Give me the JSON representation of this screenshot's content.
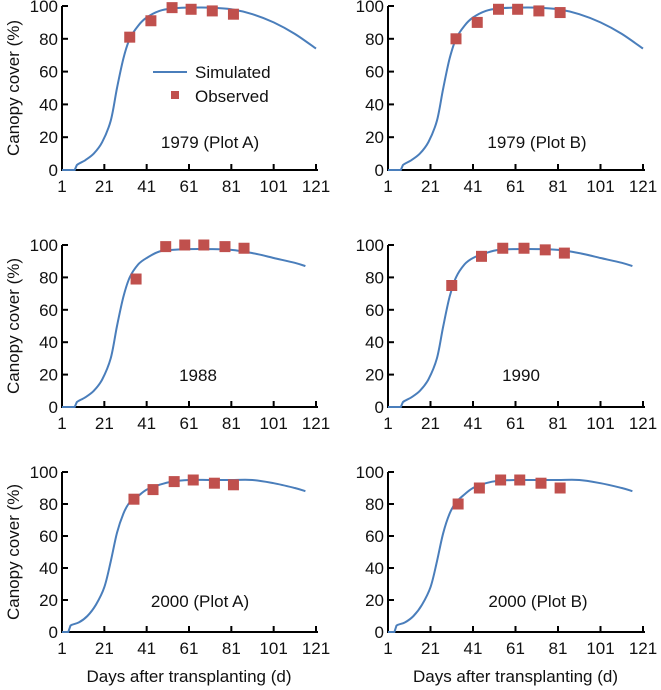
{
  "chart_data": [
    {
      "type": "line",
      "title": "1979 (Plot A)",
      "xlabel": "",
      "ylabel": "Canopy cover (%)",
      "xlim": [
        1,
        121
      ],
      "ylim": [
        0,
        100
      ],
      "xticks": [
        "1",
        "21",
        "41",
        "61",
        "81",
        "101",
        "121"
      ],
      "yticks": [
        "0",
        "20",
        "40",
        "60",
        "80",
        "100"
      ],
      "legend": {
        "position": "center-right",
        "entries": [
          "Simulated",
          "Observed"
        ]
      },
      "series": [
        {
          "name": "Simulated",
          "type": "line",
          "x": [
            1,
            7,
            8,
            12,
            16,
            20,
            24,
            27,
            30,
            33,
            37,
            41,
            47,
            53,
            61,
            71,
            81,
            91,
            101,
            111,
            121
          ],
          "y": [
            0,
            0,
            3,
            6,
            10,
            17,
            30,
            50,
            68,
            80,
            88,
            93,
            97,
            98.5,
            99,
            99,
            98,
            95,
            90,
            83,
            74
          ]
        },
        {
          "name": "Observed",
          "type": "scatter",
          "x": [
            33,
            43,
            53,
            62,
            72,
            82
          ],
          "y": [
            81,
            91,
            99,
            98,
            97,
            95
          ]
        }
      ]
    },
    {
      "type": "line",
      "title": "1979 (Plot B)",
      "xlabel": "",
      "ylabel": "",
      "xlim": [
        1,
        121
      ],
      "ylim": [
        0,
        100
      ],
      "xticks": [
        "1",
        "21",
        "41",
        "61",
        "81",
        "101",
        "121"
      ],
      "yticks": [
        "0",
        "20",
        "40",
        "60",
        "80",
        "100"
      ],
      "series": [
        {
          "name": "Simulated",
          "type": "line",
          "x": [
            1,
            7,
            8,
            12,
            16,
            20,
            24,
            27,
            30,
            33,
            37,
            41,
            47,
            53,
            61,
            71,
            81,
            91,
            101,
            111,
            121
          ],
          "y": [
            0,
            0,
            3,
            6,
            10,
            17,
            30,
            50,
            68,
            80,
            88,
            93,
            97,
            98.5,
            99,
            99,
            98,
            95,
            90,
            83,
            74
          ]
        },
        {
          "name": "Observed",
          "type": "scatter",
          "x": [
            33,
            43,
            53,
            62,
            72,
            82
          ],
          "y": [
            80,
            90,
            98,
            98,
            97,
            96
          ]
        }
      ]
    },
    {
      "type": "line",
      "title": "1988",
      "xlabel": "",
      "ylabel": "Canopy cover (%)",
      "xlim": [
        1,
        121
      ],
      "ylim": [
        0,
        100
      ],
      "xticks": [
        "1",
        "21",
        "41",
        "61",
        "81",
        "101",
        "121"
      ],
      "yticks": [
        "0",
        "20",
        "40",
        "60",
        "80",
        "100"
      ],
      "series": [
        {
          "name": "Simulated",
          "type": "line",
          "x": [
            1,
            7,
            8,
            12,
            16,
            20,
            24,
            27,
            30,
            33,
            37,
            41,
            47,
            53,
            61,
            71,
            81,
            91,
            101,
            111,
            116
          ],
          "y": [
            0,
            0,
            3,
            6,
            10,
            17,
            30,
            50,
            68,
            80,
            88,
            92,
            96,
            97,
            97.5,
            97.5,
            97,
            95,
            92,
            89,
            87
          ]
        },
        {
          "name": "Observed",
          "type": "scatter",
          "x": [
            36,
            50,
            59,
            68,
            78,
            87
          ],
          "y": [
            79,
            99,
            100,
            100,
            99,
            98
          ]
        }
      ]
    },
    {
      "type": "line",
      "title": "1990",
      "xlabel": "",
      "ylabel": "",
      "xlim": [
        1,
        121
      ],
      "ylim": [
        0,
        100
      ],
      "xticks": [
        "1",
        "21",
        "41",
        "61",
        "81",
        "101",
        "121"
      ],
      "yticks": [
        "0",
        "20",
        "40",
        "60",
        "80",
        "100"
      ],
      "series": [
        {
          "name": "Simulated",
          "type": "line",
          "x": [
            1,
            7,
            8,
            12,
            16,
            20,
            24,
            27,
            30,
            33,
            37,
            41,
            47,
            53,
            61,
            71,
            81,
            91,
            101,
            111,
            116
          ],
          "y": [
            0,
            0,
            3,
            6,
            10,
            17,
            30,
            50,
            68,
            80,
            88,
            92,
            95,
            97,
            97.5,
            97.5,
            97,
            95,
            92,
            89,
            87
          ]
        },
        {
          "name": "Observed",
          "type": "scatter",
          "x": [
            31,
            45,
            55,
            65,
            75,
            84
          ],
          "y": [
            75,
            93,
            98,
            98,
            97,
            95
          ]
        }
      ]
    },
    {
      "type": "line",
      "title": "2000 (Plot A)",
      "xlabel": "Days after transplanting (d)",
      "ylabel": "Canopy cover (%)",
      "xlim": [
        1,
        121
      ],
      "ylim": [
        0,
        100
      ],
      "xticks": [
        "1",
        "21",
        "41",
        "61",
        "81",
        "101",
        "121"
      ],
      "yticks": [
        "0",
        "20",
        "40",
        "60",
        "80",
        "100"
      ],
      "series": [
        {
          "name": "Simulated",
          "type": "line",
          "x": [
            1,
            4,
            5,
            9,
            13,
            17,
            21,
            24,
            27,
            30,
            33,
            37,
            41,
            47,
            53,
            61,
            71,
            81,
            91,
            101,
            111,
            116
          ],
          "y": [
            0,
            0,
            4,
            6,
            10,
            17,
            28,
            44,
            62,
            74,
            81,
            85,
            89,
            92,
            94,
            95,
            95,
            95,
            95,
            93,
            90,
            88
          ]
        },
        {
          "name": "Observed",
          "type": "scatter",
          "x": [
            35,
            44,
            54,
            63,
            73,
            82
          ],
          "y": [
            83,
            89,
            94,
            95,
            93,
            92
          ]
        }
      ]
    },
    {
      "type": "line",
      "title": "2000 (Plot B)",
      "xlabel": "Days after transplanting (d)",
      "ylabel": "",
      "xlim": [
        1,
        121
      ],
      "ylim": [
        0,
        100
      ],
      "xticks": [
        "1",
        "21",
        "41",
        "61",
        "81",
        "101",
        "121"
      ],
      "yticks": [
        "0",
        "20",
        "40",
        "60",
        "80",
        "100"
      ],
      "series": [
        {
          "name": "Simulated",
          "type": "line",
          "x": [
            1,
            4,
            5,
            9,
            13,
            17,
            21,
            24,
            27,
            30,
            33,
            37,
            41,
            47,
            53,
            61,
            71,
            81,
            91,
            101,
            111,
            116
          ],
          "y": [
            0,
            0,
            4,
            6,
            10,
            17,
            28,
            44,
            62,
            74,
            81,
            86,
            90,
            93,
            94.5,
            95,
            95,
            95,
            95,
            93,
            90,
            88
          ]
        },
        {
          "name": "Observed",
          "type": "scatter",
          "x": [
            34,
            44,
            54,
            63,
            73,
            82
          ],
          "y": [
            80,
            90,
            95,
            95,
            93,
            90
          ]
        }
      ]
    }
  ],
  "colors": {
    "simulated": "#4a7ebb",
    "observed": "#c0504d",
    "axis": "#000000"
  },
  "legend": {
    "simulated_label": "Simulated",
    "observed_label": "Observed"
  }
}
